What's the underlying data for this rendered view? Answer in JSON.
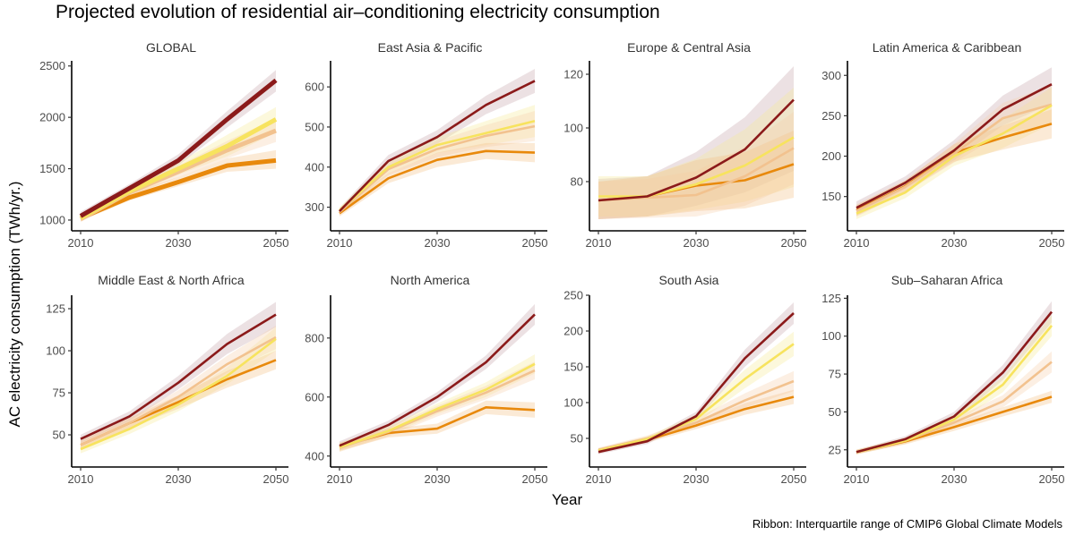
{
  "chart_data": {
    "type": "line",
    "title": "Projected evolution of residential air–conditioning electricity consumption",
    "xlabel": "Year",
    "ylabel": "AC electricity consumption (TWh/yr.)",
    "caption": "Ribbon:  Interquartile range of CMIP6 Global Climate Models",
    "x": [
      2010,
      2020,
      2030,
      2040,
      2050
    ],
    "x_ticks": [
      2010,
      2030,
      2050
    ],
    "xlim": [
      2010,
      2050
    ],
    "grid": false,
    "legend": "none",
    "series_colors": [
      "#8b1a1a",
      "#f7e35e",
      "#f2c28f",
      "#e8890c"
    ],
    "ribbon_colors": [
      "#c9a9b0",
      "#f7ec9a",
      "#f5d2ae",
      "#f3c48a"
    ],
    "panels": [
      {
        "name": "GLOBAL",
        "ylim": [
          930,
          2550
        ],
        "y_ticks": [
          1000,
          1500,
          2000,
          2500
        ],
        "series": [
          {
            "values": [
              1040,
              1310,
              1580,
              1980,
              2360
            ],
            "lo": [
              1000,
              1270,
              1530,
              1900,
              2250
            ],
            "hi": [
              1080,
              1350,
              1640,
              2060,
              2460
            ]
          },
          {
            "values": [
              1020,
              1280,
              1500,
              1720,
              1980
            ],
            "lo": [
              990,
              1240,
              1440,
              1620,
              1850
            ],
            "hi": [
              1060,
              1320,
              1560,
              1830,
              2100
            ]
          },
          {
            "values": [
              1010,
              1270,
              1470,
              1680,
              1870
            ],
            "lo": [
              980,
              1230,
              1420,
              1600,
              1760
            ],
            "hi": [
              1050,
              1310,
              1530,
              1770,
              1990
            ]
          },
          {
            "values": [
              1020,
              1220,
              1370,
              1530,
              1580
            ],
            "lo": [
              990,
              1190,
              1330,
              1470,
              1500
            ],
            "hi": [
              1050,
              1260,
              1420,
              1600,
              1680
            ]
          }
        ]
      },
      {
        "name": "East Asia & Pacific",
        "ylim": [
          250,
          665
        ],
        "y_ticks": [
          300,
          400,
          500,
          600
        ],
        "series": [
          {
            "values": [
              290,
              415,
              475,
              555,
              615
            ],
            "lo": [
              282,
              400,
              458,
              532,
              585
            ],
            "hi": [
              298,
              430,
              492,
              578,
              645
            ]
          },
          {
            "values": [
              292,
              400,
              455,
              485,
              515
            ],
            "lo": [
              284,
              385,
              435,
              455,
              475
            ],
            "hi": [
              300,
              415,
              475,
              515,
              555
            ]
          },
          {
            "values": [
              288,
              395,
              445,
              478,
              502
            ],
            "lo": [
              280,
              380,
              425,
              450,
              465
            ],
            "hi": [
              296,
              410,
              465,
              505,
              540
            ]
          },
          {
            "values": [
              285,
              372,
              418,
              440,
              436
            ],
            "lo": [
              277,
              360,
              400,
              420,
              412
            ],
            "hi": [
              293,
              385,
              436,
              460,
              460
            ]
          }
        ]
      },
      {
        "name": "Europe & Central Asia",
        "ylim": [
          63,
          125
        ],
        "y_ticks": [
          80,
          100,
          120
        ],
        "series": [
          {
            "values": [
              73,
              74.5,
              81.5,
              92,
              110.5
            ],
            "lo": [
              66,
              67,
              71,
              76,
              84
            ],
            "hi": [
              81,
              82,
              91,
              104,
              123
            ]
          },
          {
            "values": [
              74.5,
              74.5,
              79,
              86,
              96.5
            ],
            "lo": [
              67,
              67,
              69.5,
              72.5,
              78
            ],
            "hi": [
              82,
              82,
              88.5,
              99.5,
              115
            ]
          },
          {
            "values": [
              73,
              74,
              75,
              82,
              92.5
            ],
            "lo": [
              66,
              66.5,
              67,
              71,
              79
            ],
            "hi": [
              80,
              81,
              84,
              93,
              106
            ]
          },
          {
            "values": [
              73,
              74.5,
              78.5,
              80.5,
              86.5
            ],
            "lo": [
              66,
              67,
              69,
              70,
              74
            ],
            "hi": [
              80,
              82,
              88,
              91,
              99
            ]
          }
        ]
      },
      {
        "name": "Latin America & Caribbean",
        "ylim": [
          112,
          318
        ],
        "y_ticks": [
          150,
          200,
          250,
          300
        ],
        "series": [
          {
            "values": [
              136,
              167,
              207,
              258,
              289
            ],
            "lo": [
              128,
              160,
              195,
              238,
              265
            ],
            "hi": [
              144,
              175,
              220,
              275,
              310
            ]
          },
          {
            "values": [
              129,
              155,
              200,
              228,
              263
            ],
            "lo": [
              122,
              148,
              188,
              210,
              240
            ],
            "hi": [
              136,
              162,
              212,
              246,
              285
            ]
          },
          {
            "values": [
              132,
              162,
              203,
              247,
              264
            ],
            "lo": [
              125,
              155,
              192,
              228,
              240
            ],
            "hi": [
              139,
              170,
              215,
              266,
              288
            ]
          },
          {
            "values": [
              133,
              163,
              204,
              223,
              240
            ],
            "lo": [
              126,
              156,
              193,
              208,
              222
            ],
            "hi": [
              140,
              170,
              215,
              238,
              258
            ]
          }
        ]
      },
      {
        "name": "Middle East & North Africa",
        "ylim": [
          33,
          133
        ],
        "y_ticks": [
          50,
          75,
          100,
          125
        ],
        "series": [
          {
            "values": [
              47.5,
              61,
              81,
              104,
              121.5
            ],
            "lo": [
              45,
              58,
              77,
              98,
              114
            ],
            "hi": [
              50,
              64,
              85,
              110,
              129
            ]
          },
          {
            "values": [
              41.5,
              53.5,
              68,
              85,
              107
            ],
            "lo": [
              39,
              50.5,
              64,
              80,
              100
            ],
            "hi": [
              44,
              56.5,
              72,
              90,
              114
            ]
          },
          {
            "values": [
              44,
              57,
              72.5,
              92,
              108
            ],
            "lo": [
              41.5,
              54,
              68.5,
              87,
              101
            ],
            "hi": [
              46.5,
              60,
              76.5,
              97,
              115
            ]
          },
          {
            "values": [
              44,
              57,
              69.5,
              83,
              94.5
            ],
            "lo": [
              41.5,
              54,
              65.5,
              78,
              89
            ],
            "hi": [
              46.5,
              60,
              73.5,
              88,
              100
            ]
          }
        ]
      },
      {
        "name": "North America",
        "ylim": [
          375,
          945
        ],
        "y_ticks": [
          400,
          600,
          800
        ],
        "series": [
          {
            "values": [
              435,
              505,
              600,
              718,
              880
            ],
            "lo": [
              420,
              490,
              583,
              695,
              845
            ],
            "hi": [
              450,
              520,
              617,
              741,
              915
            ]
          },
          {
            "values": [
              430,
              485,
              560,
              625,
              712
            ],
            "lo": [
              416,
              470,
              542,
              600,
              680
            ],
            "hi": [
              444,
              500,
              578,
              650,
              745
            ]
          },
          {
            "values": [
              428,
              482,
              552,
              615,
              690
            ],
            "lo": [
              414,
              467,
              534,
              592,
              660
            ],
            "hi": [
              442,
              497,
              570,
              638,
              720
            ]
          },
          {
            "values": [
              432,
              478,
              493,
              565,
              556
            ],
            "lo": [
              418,
              463,
              476,
              542,
              530
            ],
            "hi": [
              446,
              493,
              510,
              588,
              582
            ]
          }
        ]
      },
      {
        "name": "South Asia",
        "ylim": [
          15,
          250
        ],
        "y_ticks": [
          50,
          100,
          150,
          200,
          250
        ],
        "series": [
          {
            "values": [
              31,
              46,
              81,
              162,
              225
            ],
            "lo": [
              28,
              42,
              75,
              150,
              210
            ],
            "hi": [
              34,
              50,
              87,
              174,
              240
            ]
          },
          {
            "values": [
              33,
              49,
              77,
              133,
              182
            ],
            "lo": [
              30,
              45,
              71,
              120,
              165
            ],
            "hi": [
              36,
              53,
              83,
              146,
              199
            ]
          },
          {
            "values": [
              34,
              50,
              72,
              103,
              130
            ],
            "lo": [
              31,
              46,
              66,
              93,
              116
            ],
            "hi": [
              37,
              54,
              78,
              113,
              144
            ]
          },
          {
            "values": [
              33,
              48,
              68,
              91,
              108
            ],
            "lo": [
              30,
              44,
              63,
              83,
              98
            ],
            "hi": [
              36,
              52,
              73,
              99,
              118
            ]
          }
        ]
      },
      {
        "name": "Sub–Saharan Africa",
        "ylim": [
          16,
          127
        ],
        "y_ticks": [
          25,
          50,
          75,
          100,
          125
        ],
        "series": [
          {
            "values": [
              23.5,
              32,
              47,
              76,
              116
            ],
            "lo": [
              22,
              30,
              44,
              71,
              109
            ],
            "hi": [
              25,
              34,
              50,
              81,
              123
            ]
          },
          {
            "values": [
              23.5,
              31,
              45,
              68,
              107
            ],
            "lo": [
              22,
              29,
              42,
              63,
              100
            ],
            "hi": [
              25,
              33,
              48,
              73,
              114
            ]
          },
          {
            "values": [
              23.5,
              31,
              43,
              57,
              83
            ],
            "lo": [
              22,
              29,
              40,
              53,
              76
            ],
            "hi": [
              25,
              33,
              46,
              61,
              90
            ]
          },
          {
            "values": [
              23.5,
              30.5,
              40,
              50,
              60
            ],
            "lo": [
              22,
              28.5,
              37.5,
              47,
              56
            ],
            "hi": [
              25,
              32.5,
              42.5,
              53,
              64
            ]
          }
        ]
      }
    ]
  }
}
